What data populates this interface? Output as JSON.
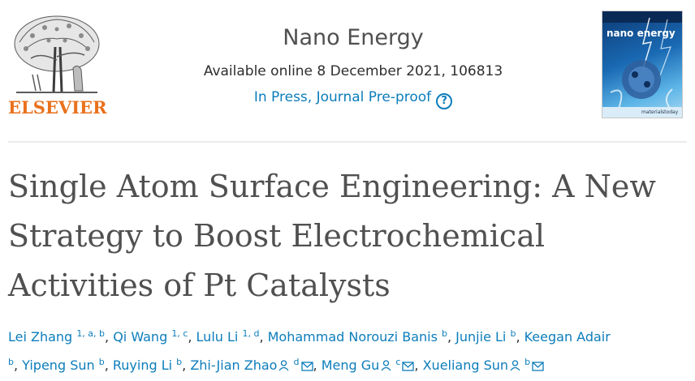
{
  "header": {
    "publisher": "ELSEVIER",
    "journal_title": "Nano Energy",
    "available_online": "Available online 8 December 2021, 106813",
    "status_link": "In Press, Journal Pre-proof",
    "help_icon": "question-circle-icon",
    "cover_title": "nano energy",
    "cover_footer": "materialstoday"
  },
  "article": {
    "title_lines": [
      "Single Atom Surface Engineering: A New",
      "Strategy to Boost Electrochemical",
      "Activities of Pt Catalysts"
    ]
  },
  "authors": [
    {
      "name": "Lei Zhang",
      "sup": "1, a, b"
    },
    {
      "name": "Qi Wang",
      "sup": "1, c"
    },
    {
      "name": "Lulu Li",
      "sup": "1, d"
    },
    {
      "name": "Mohammad Norouzi Banis",
      "sup": "b"
    },
    {
      "name": "Junjie Li",
      "sup": "b"
    },
    {
      "name": "Keegan Adair",
      "sup": "b"
    },
    {
      "name": "Yipeng Sun",
      "sup": "b"
    },
    {
      "name": "Ruying Li",
      "sup": "b"
    },
    {
      "name": "Zhi-Jian Zhao",
      "sup": "d"
    },
    {
      "name": "Meng Gu",
      "sup": "c"
    },
    {
      "name": "Xueliang Sun",
      "sup": "b"
    }
  ],
  "colors": {
    "link": "#0c7dbb",
    "publisher_orange": "#e9711c",
    "title_gray": "#505050"
  },
  "icons": {
    "person": "person-icon",
    "email": "envelope-icon"
  }
}
